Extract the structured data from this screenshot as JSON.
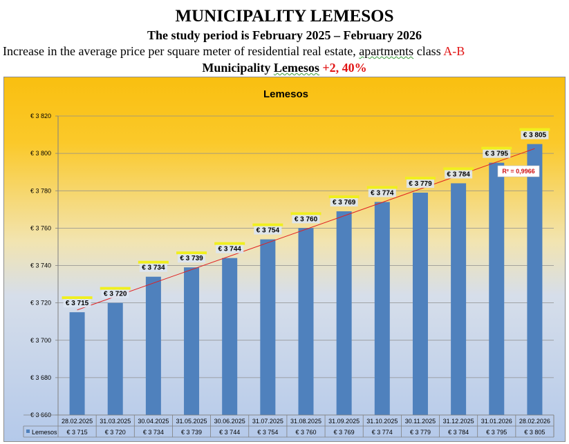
{
  "header": {
    "title": "MUNICIPALITY LEMESOS",
    "period": "The study period is February  2025 – February  2026",
    "desc_a": "Increase in the average price per square meter of residential real estate, ",
    "desc_b": "apartments",
    "desc_c": " class ",
    "desc_d": "A-B",
    "muni_a": "Municipality  ",
    "muni_b": "Lemesos",
    "muni_c": "  ",
    "muni_d": "+2, 40%"
  },
  "chart_data": {
    "type": "bar",
    "title": "Lemesos",
    "categories": [
      "28.02.2025",
      "31.03.2025",
      "30.04.2025",
      "31.05.2025",
      "30.06.2025",
      "31.07.2025",
      "31.08.2025",
      "31.09.2025",
      "31.10.2025",
      "30.11.2025",
      "31.12.2025",
      "31.01.2026",
      "28.02.2026"
    ],
    "series": [
      {
        "name": "Lemesos",
        "values": [
          3715,
          3720,
          3734,
          3739,
          3744,
          3754,
          3760,
          3769,
          3774,
          3779,
          3784,
          3795,
          3805
        ],
        "color": "#4f81bd"
      }
    ],
    "value_labels": [
      "€ 3 715",
      "€ 3 720",
      "€ 3 734",
      "€ 3 739",
      "€ 3 744",
      "€ 3 754",
      "€ 3 760",
      "€ 3 769",
      "€ 3 774",
      "€ 3 779",
      "€ 3 784",
      "€ 3 795",
      "€ 3 805"
    ],
    "y_ticks": [
      3660,
      3680,
      3700,
      3720,
      3740,
      3760,
      3780,
      3800,
      3820
    ],
    "y_tick_labels": [
      "€ 3 660",
      "€ 3 680",
      "€ 3 700",
      "€ 3 720",
      "€ 3 740",
      "€ 3 760",
      "€ 3 780",
      "€ 3 800",
      "€ 3 820"
    ],
    "ylim": [
      3660,
      3820
    ],
    "trendline": {
      "type": "linear",
      "color": "#e02020",
      "r2_label": "R² = 0,9966"
    },
    "grid": true,
    "data_table": true,
    "background": {
      "top": "#f9bf10",
      "bottom": "#b4c9ea"
    }
  }
}
